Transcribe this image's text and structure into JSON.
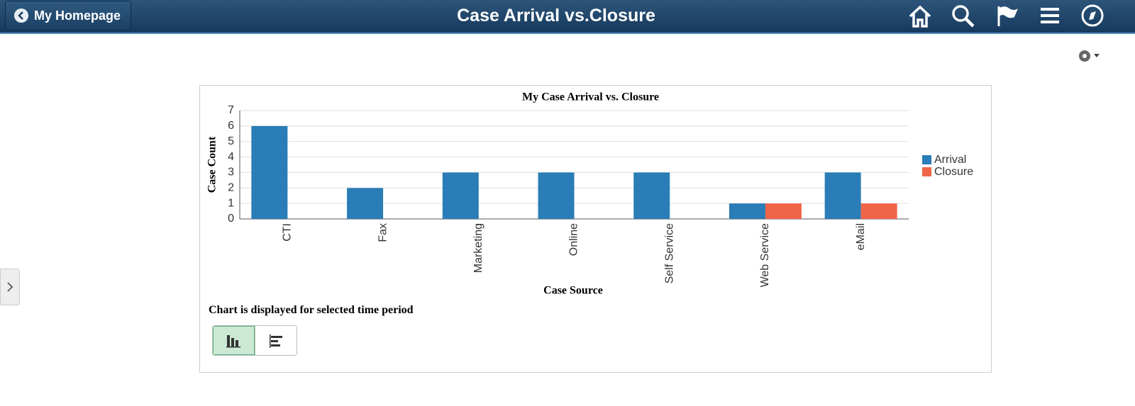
{
  "header": {
    "back": "My Homepage",
    "title": "Case Arrival vs.Closure"
  },
  "chart_data": {
    "type": "bar",
    "title": "My Case Arrival vs. Closure",
    "y_label": "Case Count",
    "x_label": "Case Source",
    "categories": [
      "CTI",
      "Fax",
      "Marketing",
      "Online",
      "Self Service",
      "Web Service",
      "eMail"
    ],
    "series": [
      {
        "name": "Arrival",
        "color": "#2a7db6",
        "values": [
          6,
          2,
          3,
          3,
          3,
          1,
          3
        ]
      },
      {
        "name": "Closure",
        "color": "#ee6548",
        "values": [
          0,
          0,
          0,
          0,
          0,
          1,
          1
        ]
      }
    ],
    "ylim": [
      0,
      7
    ],
    "yticks": [
      0,
      1,
      2,
      3,
      4,
      5,
      6,
      7
    ],
    "grid": true,
    "legend": "right"
  },
  "note": "Chart is displayed for selected time period"
}
